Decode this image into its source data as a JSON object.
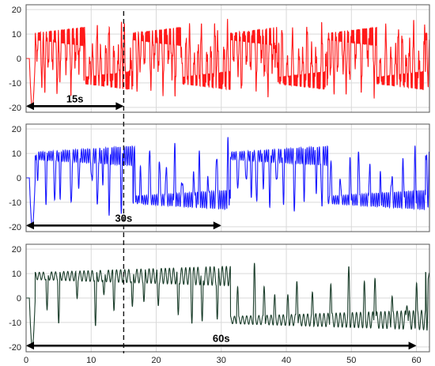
{
  "chart_data": [
    {
      "type": "line",
      "x_range": [
        0,
        62
      ],
      "ylim": [
        -22,
        22
      ],
      "y_ticks": [
        -20,
        -10,
        0,
        10,
        20
      ],
      "grid": true,
      "series": [
        {
          "color": "#ff1a1a",
          "duration_s": 62,
          "regime_switch_period_s": 7.5
        }
      ],
      "annotation": {
        "label": "15s",
        "from": 0,
        "to": 15,
        "y": -19.5
      }
    },
    {
      "type": "line",
      "x_range": [
        0,
        62
      ],
      "ylim": [
        -22,
        22
      ],
      "y_ticks": [
        -20,
        -10,
        0,
        10,
        20
      ],
      "grid": true,
      "series": [
        {
          "color": "#1a1aff",
          "duration_s": 62,
          "regime_switch_period_s": 15
        }
      ],
      "annotation": {
        "label": "30s",
        "from": 0,
        "to": 30,
        "y": -19.5
      }
    },
    {
      "type": "line",
      "x_range": [
        0,
        62
      ],
      "ylim": [
        -22,
        22
      ],
      "y_ticks": [
        -20,
        -10,
        0,
        10,
        20
      ],
      "x_ticks": [
        0,
        10,
        20,
        30,
        40,
        50,
        60
      ],
      "grid": true,
      "series": [
        {
          "color": "#1a3d2a",
          "duration_s": 62,
          "regime_switch_period_s": 30
        }
      ],
      "annotation": {
        "label": "60s",
        "from": 0,
        "to": 60,
        "y": -19.5
      }
    }
  ],
  "marker": {
    "x": 15,
    "style": "dashed"
  }
}
